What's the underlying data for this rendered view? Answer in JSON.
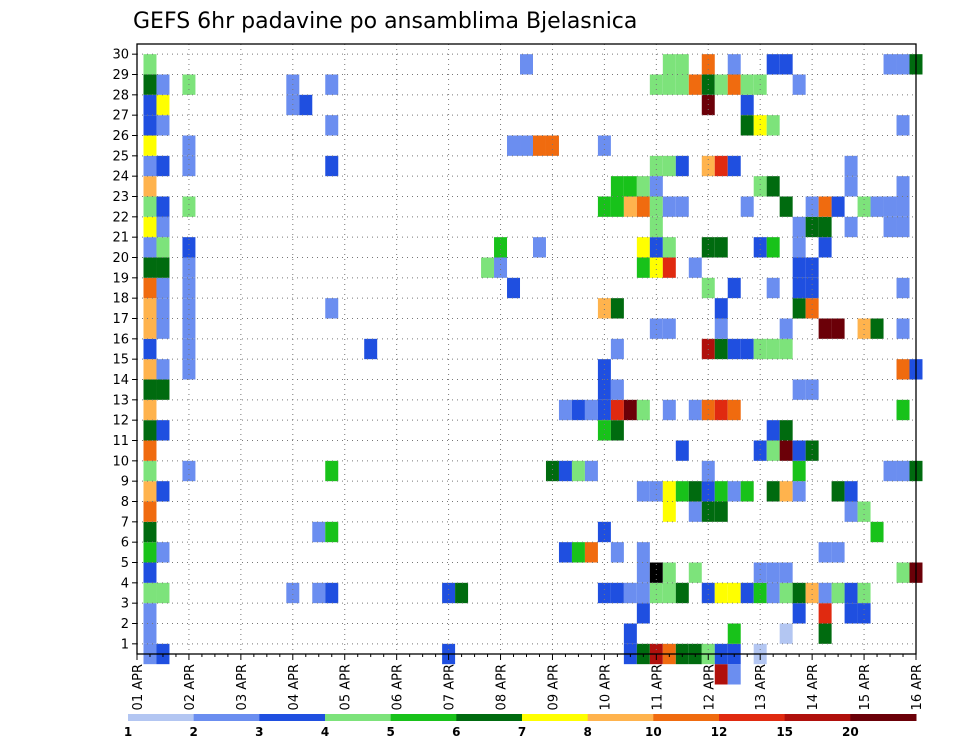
{
  "chart_data": {
    "type": "heatmap",
    "title": "GEFS 6hr padavine po ansamblima Bjelasnica",
    "x_tick_labels": [
      "01 APR",
      "02 APR",
      "03 APR",
      "04 APR",
      "05 APR",
      "06 APR",
      "07 APR",
      "08 APR",
      "09 APR",
      "10 APR",
      "11 APR",
      "12 APR",
      "13 APR",
      "14 APR",
      "15 APR",
      "16 APR"
    ],
    "y_tick_labels": [
      "1",
      "2",
      "3",
      "4",
      "5",
      "6",
      "7",
      "8",
      "9",
      "10",
      "11",
      "12",
      "13",
      "14",
      "15",
      "16",
      "17",
      "18",
      "19",
      "20",
      "21",
      "22",
      "23",
      "24",
      "25",
      "26",
      "27",
      "28",
      "29",
      "30"
    ],
    "x_range": [
      "01 APR 00Z",
      "16 APR 00Z"
    ],
    "time_step_hours": 6,
    "y_range": [
      0,
      30
    ],
    "grid": true,
    "color_levels": [
      "1",
      "2",
      "3",
      "4",
      "5",
      "6",
      "7",
      "8",
      "10",
      "12",
      "15",
      "20"
    ],
    "colors": [
      "#b3c6f2",
      "#6b8ef0",
      "#1f4fe0",
      "#7de37b",
      "#18c21a",
      "#006b0f",
      "#ffff00",
      "#ffb34d",
      "#f06b0f",
      "#e02a10",
      "#b0100c",
      "#6b0008"
    ],
    "cells": [
      [
        1,
        0,
        1
      ],
      [
        1,
        1,
        1
      ],
      [
        1,
        2,
        1
      ],
      [
        1,
        3,
        3
      ],
      [
        1,
        4,
        2
      ],
      [
        1,
        5,
        4
      ],
      [
        1,
        6,
        5
      ],
      [
        1,
        7,
        8
      ],
      [
        1,
        8,
        7
      ],
      [
        1,
        9,
        3
      ],
      [
        1,
        10,
        8
      ],
      [
        1,
        11,
        5
      ],
      [
        1,
        12,
        7
      ],
      [
        1,
        13,
        5
      ],
      [
        1,
        14,
        7
      ],
      [
        1,
        15,
        2
      ],
      [
        1,
        16,
        7
      ],
      [
        1,
        17,
        7
      ],
      [
        1,
        18,
        8
      ],
      [
        1,
        19,
        5
      ],
      [
        1,
        20,
        1
      ],
      [
        1,
        21,
        6
      ],
      [
        1,
        22,
        3
      ],
      [
        1,
        23,
        7
      ],
      [
        1,
        24,
        1
      ],
      [
        1,
        25,
        6
      ],
      [
        1,
        26,
        2
      ],
      [
        1,
        27,
        2
      ],
      [
        1,
        28,
        5
      ],
      [
        1,
        29,
        3
      ],
      [
        2,
        0,
        2
      ],
      [
        2,
        3,
        3
      ],
      [
        2,
        5,
        1
      ],
      [
        2,
        8,
        2
      ],
      [
        2,
        11,
        2
      ],
      [
        2,
        13,
        5
      ],
      [
        2,
        14,
        1
      ],
      [
        2,
        16,
        1
      ],
      [
        2,
        17,
        1
      ],
      [
        2,
        18,
        1
      ],
      [
        2,
        19,
        5
      ],
      [
        2,
        20,
        3
      ],
      [
        2,
        21,
        1
      ],
      [
        2,
        22,
        2
      ],
      [
        2,
        24,
        2
      ],
      [
        2,
        26,
        1
      ],
      [
        2,
        27,
        6
      ],
      [
        2,
        28,
        1
      ],
      [
        4,
        9,
        1
      ],
      [
        4,
        14,
        1
      ],
      [
        4,
        15,
        1
      ],
      [
        4,
        16,
        1
      ],
      [
        4,
        17,
        1
      ],
      [
        4,
        18,
        1
      ],
      [
        4,
        19,
        1
      ],
      [
        4,
        20,
        2
      ],
      [
        4,
        22,
        3
      ],
      [
        4,
        24,
        1
      ],
      [
        4,
        25,
        1
      ],
      [
        4,
        28,
        3
      ],
      [
        12,
        3,
        1
      ],
      [
        12,
        27,
        1
      ],
      [
        12,
        28,
        1
      ],
      [
        13,
        27,
        2
      ],
      [
        14,
        6,
        1
      ],
      [
        14,
        3,
        1
      ],
      [
        15,
        3,
        2
      ],
      [
        15,
        6,
        4
      ],
      [
        15,
        9,
        4
      ],
      [
        15,
        17,
        1
      ],
      [
        15,
        24,
        2
      ],
      [
        15,
        26,
        1
      ],
      [
        15,
        28,
        1
      ],
      [
        18,
        15,
        2
      ],
      [
        24,
        3,
        2
      ],
      [
        25,
        3,
        5
      ],
      [
        24,
        0,
        2
      ],
      [
        27,
        19,
        3
      ],
      [
        28,
        19,
        1
      ],
      [
        28,
        20,
        4
      ],
      [
        29,
        18,
        2
      ],
      [
        29,
        25,
        1
      ],
      [
        30,
        25,
        1
      ],
      [
        30,
        29,
        1
      ],
      [
        31,
        20,
        1
      ],
      [
        31,
        25,
        8
      ],
      [
        32,
        25,
        8
      ],
      [
        32,
        9,
        5
      ],
      [
        33,
        5,
        2
      ],
      [
        33,
        9,
        2
      ],
      [
        33,
        12,
        1
      ],
      [
        34,
        5,
        4
      ],
      [
        34,
        9,
        3
      ],
      [
        34,
        12,
        2
      ],
      [
        35,
        5,
        8
      ],
      [
        35,
        12,
        1
      ],
      [
        35,
        9,
        1
      ],
      [
        36,
        6,
        2
      ],
      [
        36,
        3,
        2
      ],
      [
        36,
        12,
        2
      ],
      [
        36,
        13,
        2
      ],
      [
        36,
        11,
        4
      ],
      [
        36,
        14,
        2
      ],
      [
        36,
        17,
        7
      ],
      [
        36,
        22,
        4
      ],
      [
        36,
        25,
        1
      ],
      [
        37,
        5,
        1
      ],
      [
        37,
        11,
        5
      ],
      [
        37,
        12,
        9
      ],
      [
        37,
        13,
        1
      ],
      [
        37,
        17,
        5
      ],
      [
        37,
        22,
        4
      ],
      [
        37,
        23,
        4
      ],
      [
        37,
        3,
        2
      ],
      [
        37,
        15,
        1
      ],
      [
        38,
        12,
        11
      ],
      [
        38,
        3,
        1
      ],
      [
        38,
        0,
        2
      ],
      [
        38,
        1,
        2
      ],
      [
        38,
        22,
        7
      ],
      [
        38,
        23,
        4
      ],
      [
        39,
        0,
        5
      ],
      [
        39,
        12,
        3
      ],
      [
        39,
        2,
        2
      ],
      [
        39,
        3,
        1
      ],
      [
        39,
        4,
        1
      ],
      [
        39,
        5,
        1
      ],
      [
        39,
        8,
        1
      ],
      [
        39,
        19,
        4
      ],
      [
        39,
        20,
        6
      ],
      [
        39,
        23,
        3
      ],
      [
        39,
        22,
        8
      ],
      [
        40,
        0,
        10
      ],
      [
        40,
        3,
        3
      ],
      [
        40,
        4,
        12
      ],
      [
        40,
        8,
        1
      ],
      [
        40,
        16,
        1
      ],
      [
        40,
        19,
        6
      ],
      [
        40,
        20,
        2
      ],
      [
        40,
        28,
        3
      ],
      [
        40,
        21,
        3
      ],
      [
        40,
        22,
        3
      ],
      [
        40,
        24,
        3
      ],
      [
        40,
        23,
        1
      ],
      [
        41,
        0,
        8
      ],
      [
        41,
        3,
        3
      ],
      [
        41,
        4,
        3
      ],
      [
        41,
        7,
        6
      ],
      [
        41,
        8,
        6
      ],
      [
        41,
        12,
        1
      ],
      [
        41,
        16,
        1
      ],
      [
        41,
        19,
        9
      ],
      [
        41,
        20,
        3
      ],
      [
        41,
        22,
        1
      ],
      [
        41,
        24,
        3
      ],
      [
        41,
        28,
        3
      ],
      [
        41,
        29,
        3
      ],
      [
        42,
        0,
        5
      ],
      [
        42,
        3,
        5
      ],
      [
        42,
        8,
        4
      ],
      [
        42,
        10,
        2
      ],
      [
        42,
        22,
        1
      ],
      [
        42,
        24,
        2
      ],
      [
        42,
        28,
        3
      ],
      [
        42,
        29,
        3
      ],
      [
        43,
        0,
        5
      ],
      [
        43,
        4,
        3
      ],
      [
        43,
        7,
        1
      ],
      [
        43,
        8,
        5
      ],
      [
        43,
        12,
        1
      ],
      [
        43,
        19,
        1
      ],
      [
        43,
        28,
        8
      ],
      [
        44,
        0,
        3
      ],
      [
        44,
        3,
        2
      ],
      [
        44,
        7,
        5
      ],
      [
        44,
        8,
        2
      ],
      [
        44,
        9,
        1
      ],
      [
        44,
        12,
        8
      ],
      [
        44,
        15,
        10
      ],
      [
        44,
        20,
        5
      ],
      [
        44,
        24,
        7
      ],
      [
        44,
        18,
        3
      ],
      [
        44,
        27,
        11
      ],
      [
        44,
        28,
        5
      ],
      [
        44,
        29,
        8
      ],
      [
        45,
        -1,
        10
      ],
      [
        45,
        0,
        2
      ],
      [
        45,
        3,
        6
      ],
      [
        45,
        7,
        5
      ],
      [
        45,
        8,
        4
      ],
      [
        45,
        12,
        9
      ],
      [
        45,
        15,
        5
      ],
      [
        45,
        16,
        1
      ],
      [
        45,
        17,
        2
      ],
      [
        45,
        20,
        5
      ],
      [
        45,
        24,
        9
      ],
      [
        45,
        28,
        3
      ],
      [
        46,
        -1,
        1
      ],
      [
        46,
        0,
        2
      ],
      [
        46,
        1,
        4
      ],
      [
        46,
        3,
        6
      ],
      [
        46,
        8,
        1
      ],
      [
        46,
        12,
        8
      ],
      [
        46,
        15,
        2
      ],
      [
        46,
        18,
        2
      ],
      [
        46,
        24,
        2
      ],
      [
        46,
        28,
        8
      ],
      [
        46,
        29,
        1
      ],
      [
        47,
        3,
        2
      ],
      [
        47,
        8,
        4
      ],
      [
        47,
        15,
        2
      ],
      [
        47,
        27,
        2
      ],
      [
        47,
        26,
        5
      ],
      [
        47,
        22,
        1
      ],
      [
        47,
        28,
        3
      ],
      [
        48,
        0,
        0
      ],
      [
        48,
        3,
        4
      ],
      [
        48,
        4,
        1
      ],
      [
        48,
        10,
        2
      ],
      [
        48,
        15,
        3
      ],
      [
        48,
        20,
        2
      ],
      [
        48,
        23,
        3
      ],
      [
        48,
        26,
        6
      ],
      [
        48,
        28,
        3
      ],
      [
        49,
        3,
        1
      ],
      [
        49,
        4,
        1
      ],
      [
        49,
        8,
        5
      ],
      [
        49,
        10,
        3
      ],
      [
        49,
        11,
        2
      ],
      [
        49,
        15,
        3
      ],
      [
        49,
        18,
        1
      ],
      [
        49,
        20,
        4
      ],
      [
        49,
        23,
        5
      ],
      [
        49,
        26,
        3
      ],
      [
        49,
        29,
        2
      ],
      [
        50,
        1,
        0
      ],
      [
        50,
        3,
        3
      ],
      [
        50,
        4,
        1
      ],
      [
        50,
        8,
        7
      ],
      [
        50,
        10,
        11
      ],
      [
        50,
        11,
        5
      ],
      [
        50,
        15,
        3
      ],
      [
        50,
        16,
        1
      ],
      [
        50,
        22,
        5
      ],
      [
        50,
        29,
        2
      ],
      [
        51,
        2,
        2
      ],
      [
        51,
        3,
        5
      ],
      [
        51,
        8,
        1
      ],
      [
        51,
        9,
        4
      ],
      [
        51,
        10,
        2
      ],
      [
        51,
        13,
        1
      ],
      [
        51,
        17,
        5
      ],
      [
        51,
        18,
        2
      ],
      [
        51,
        19,
        2
      ],
      [
        51,
        20,
        1
      ],
      [
        51,
        21,
        1
      ],
      [
        51,
        28,
        1
      ],
      [
        52,
        3,
        7
      ],
      [
        52,
        10,
        5
      ],
      [
        52,
        13,
        1
      ],
      [
        52,
        17,
        8
      ],
      [
        52,
        18,
        2
      ],
      [
        52,
        19,
        2
      ],
      [
        52,
        21,
        5
      ],
      [
        52,
        22,
        1
      ],
      [
        53,
        1,
        5
      ],
      [
        53,
        2,
        9
      ],
      [
        53,
        3,
        1
      ],
      [
        53,
        5,
        1
      ],
      [
        53,
        16,
        11
      ],
      [
        53,
        20,
        2
      ],
      [
        53,
        21,
        5
      ],
      [
        53,
        22,
        8
      ],
      [
        54,
        3,
        3
      ],
      [
        54,
        5,
        1
      ],
      [
        54,
        8,
        5
      ],
      [
        54,
        16,
        11
      ],
      [
        54,
        22,
        2
      ],
      [
        55,
        3,
        2
      ],
      [
        55,
        7,
        1
      ],
      [
        55,
        8,
        2
      ],
      [
        55,
        2,
        2
      ],
      [
        55,
        23,
        1
      ],
      [
        55,
        24,
        1
      ],
      [
        55,
        21,
        1
      ],
      [
        56,
        3,
        3
      ],
      [
        56,
        7,
        3
      ],
      [
        56,
        16,
        7
      ],
      [
        56,
        22,
        3
      ],
      [
        56,
        2,
        2
      ],
      [
        57,
        6,
        4
      ],
      [
        57,
        16,
        5
      ],
      [
        57,
        22,
        1
      ],
      [
        58,
        9,
        1
      ],
      [
        58,
        22,
        1
      ],
      [
        58,
        29,
        1
      ],
      [
        58,
        21,
        1
      ],
      [
        59,
        9,
        1
      ],
      [
        59,
        4,
        3
      ],
      [
        59,
        16,
        1
      ],
      [
        59,
        21,
        1
      ],
      [
        59,
        22,
        1
      ],
      [
        59,
        18,
        1
      ],
      [
        59,
        14,
        8
      ],
      [
        59,
        12,
        4
      ],
      [
        59,
        29,
        1
      ],
      [
        59,
        26,
        1
      ],
      [
        59,
        23,
        1
      ],
      [
        60,
        9,
        5
      ],
      [
        60,
        4,
        11
      ],
      [
        60,
        14,
        2
      ],
      [
        60,
        29,
        5
      ]
    ]
  }
}
